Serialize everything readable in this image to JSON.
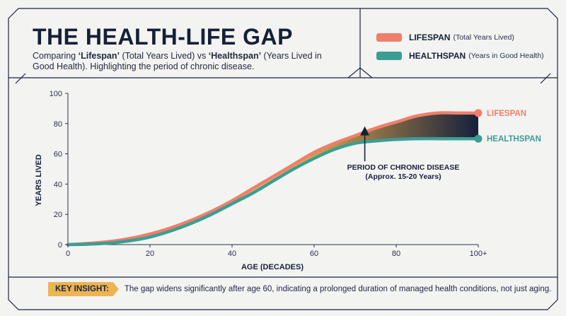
{
  "header": {
    "title": "THE HEALTH-LIFE GAP",
    "subtitle_prefix": "Comparing ",
    "subtitle_term1": "‘Lifespan’",
    "subtitle_mid1": " (Total Years Lived) vs ",
    "subtitle_term2": "‘Healthspan’",
    "subtitle_mid2": " (Years Lived in Good Health). Highlighting the period of chronic disease."
  },
  "legend": [
    {
      "label": "LIFESPAN",
      "note": "(Total Years Lived)",
      "color": "#ef7f6a"
    },
    {
      "label": "HEALTHSPAN",
      "note": "(Years in Good Health)",
      "color": "#3a9e94"
    }
  ],
  "insight": {
    "tag": "KEY INSIGHT:",
    "text": "The gap widens significantly after age 60, indicating a prolonged duration of managed health conditions, not just aging."
  },
  "chart_data": {
    "type": "line",
    "xlabel": "AGE (DECADES)",
    "ylabel": "YEARS LIVED",
    "xlim": [
      0,
      100
    ],
    "ylim": [
      0,
      100
    ],
    "x_ticks": [
      "0",
      "20",
      "40",
      "60",
      "80",
      "100+"
    ],
    "y_ticks": [
      "0",
      "20",
      "40",
      "60",
      "80",
      "100"
    ],
    "series": [
      {
        "name": "LIFESPAN",
        "color": "#ef7f6a",
        "x": [
          0,
          5,
          10,
          15,
          20,
          25,
          30,
          35,
          40,
          45,
          50,
          55,
          60,
          65,
          70,
          75,
          80,
          85,
          90,
          95,
          100
        ],
        "y": [
          0,
          0.8,
          2,
          4,
          7,
          11,
          16,
          22,
          29,
          37,
          45,
          53,
          61,
          67,
          72,
          77,
          81,
          85,
          87,
          87,
          87
        ]
      },
      {
        "name": "HEALTHSPAN",
        "color": "#3a9e94",
        "x": [
          0,
          5,
          10,
          15,
          20,
          25,
          30,
          35,
          40,
          45,
          50,
          55,
          60,
          65,
          70,
          75,
          80,
          85,
          90,
          95,
          100
        ],
        "y": [
          0,
          0.3,
          1,
          2.5,
          5,
          9,
          14,
          20,
          27,
          34,
          42,
          50,
          57,
          63,
          67,
          68.5,
          69.5,
          70,
          70,
          70,
          70
        ]
      }
    ],
    "end_labels": [
      "LIFESPAN",
      "HEALTHSPAN"
    ],
    "annotation": {
      "line1": "PERIOD OF CHRONIC DISEASE",
      "line2": "(Approx. 15-20 Years)",
      "arrow_target": [
        72,
        78
      ]
    },
    "gap_fill": {
      "colors": [
        "#f6dfae",
        "#e8b14d",
        "#16203c"
      ]
    }
  }
}
